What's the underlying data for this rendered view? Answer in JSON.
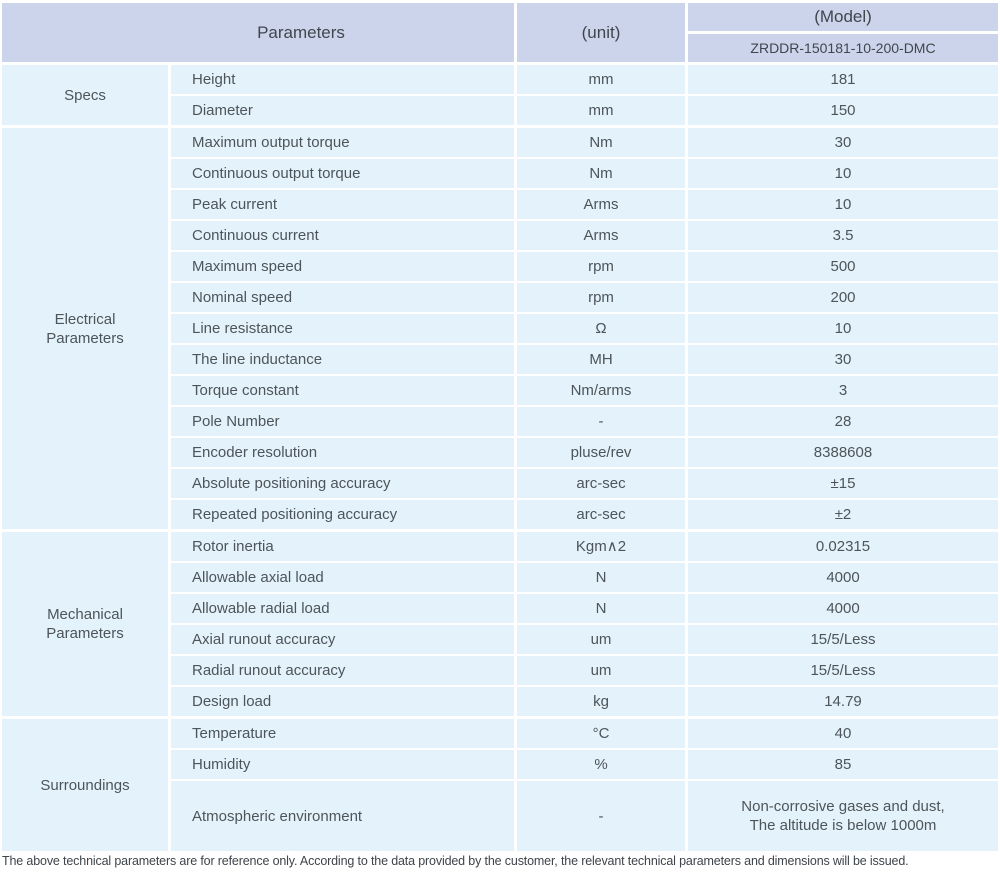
{
  "colors": {
    "hdr_bg": "#ccd4eb",
    "row_bg": "#e4f3fb",
    "text": "#4d545a"
  },
  "header": {
    "parameters_label": "Parameters",
    "unit_label": "(unit)",
    "model_label": "(Model)",
    "model_value": "ZRDDR-150181-10-200-DMC"
  },
  "sections": [
    {
      "group": "Specs",
      "rows": [
        {
          "param": "Height",
          "unit": "mm",
          "value": "181"
        },
        {
          "param": "Diameter",
          "unit": "mm",
          "value": "150"
        }
      ]
    },
    {
      "group": "Electrical\nParameters",
      "rows": [
        {
          "param": "Maximum output torque",
          "unit": "Nm",
          "value": "30"
        },
        {
          "param": "Continuous output torque",
          "unit": "Nm",
          "value": "10"
        },
        {
          "param": "Peak current",
          "unit": "Arms",
          "value": "10"
        },
        {
          "param": "Continuous current",
          "unit": "Arms",
          "value": "3.5"
        },
        {
          "param": "Maximum speed",
          "unit": "rpm",
          "value": "500"
        },
        {
          "param": "Nominal speed",
          "unit": "rpm",
          "value": "200"
        },
        {
          "param": "Line resistance",
          "unit": "Ω",
          "value": "10"
        },
        {
          "param": "The line inductance",
          "unit": "MH",
          "value": "30"
        },
        {
          "param": "Torque constant",
          "unit": "Nm/arms",
          "value": "3"
        },
        {
          "param": "Pole Number",
          "unit": "-",
          "value": "28"
        },
        {
          "param": "Encoder resolution",
          "unit": "pluse/rev",
          "value": "8388608"
        },
        {
          "param": "Absolute positioning accuracy",
          "unit": "arc-sec",
          "value": "±15"
        },
        {
          "param": "Repeated positioning accuracy",
          "unit": "arc-sec",
          "value": "±2"
        }
      ]
    },
    {
      "group": "Mechanical\nParameters",
      "rows": [
        {
          "param": "Rotor inertia",
          "unit": "Kgm∧2",
          "value": "0.02315"
        },
        {
          "param": "Allowable axial load",
          "unit": "N",
          "value": "4000"
        },
        {
          "param": "Allowable radial load",
          "unit": "N",
          "value": "4000"
        },
        {
          "param": "Axial runout accuracy",
          "unit": "um",
          "value": "15/5/Less"
        },
        {
          "param": "Radial runout accuracy",
          "unit": "um",
          "value": "15/5/Less"
        },
        {
          "param": "Design load",
          "unit": "kg",
          "value": "14.79"
        }
      ]
    },
    {
      "group": "Surroundings",
      "rows": [
        {
          "param": "Temperature",
          "unit": "°C",
          "value": "40"
        },
        {
          "param": "Humidity",
          "unit": "%",
          "value": "85"
        },
        {
          "param": "Atmospheric environment",
          "unit": "-",
          "value": "Non-corrosive gases and dust,\nThe altitude is below 1000m"
        }
      ]
    }
  ],
  "footer_note": "The above technical parameters are for reference only. According to the data provided by the customer, the relevant technical parameters and dimensions will be issued."
}
